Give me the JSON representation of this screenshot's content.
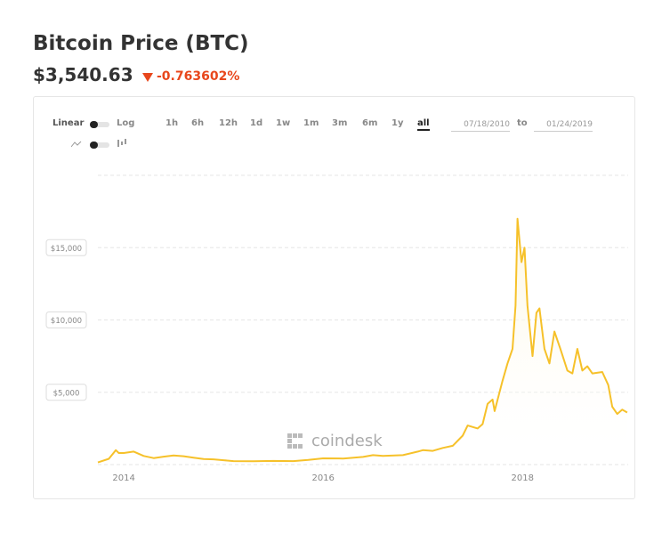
{
  "header": {
    "title": "Bitcoin Price (BTC)",
    "price": "$3,540.63",
    "change": "-0.763602%"
  },
  "controls": {
    "scales": [
      "Linear",
      "Log"
    ],
    "ranges": [
      "1h",
      "6h",
      "12h",
      "1d",
      "1w",
      "1m",
      "3m",
      "6m",
      "1y",
      "all"
    ],
    "active_range": "all",
    "date_from": "07/18/2010",
    "date_separator": "to",
    "date_to": "01/24/2019"
  },
  "chart_data": {
    "type": "area",
    "watermark": "coindesk",
    "x": [
      2013.74,
      2013.85,
      2013.92,
      2013.95,
      2014.0,
      2014.1,
      2014.2,
      2014.3,
      2014.4,
      2014.5,
      2014.6,
      2014.7,
      2014.8,
      2014.9,
      2015.0,
      2015.1,
      2015.3,
      2015.5,
      2015.7,
      2015.85,
      2016.0,
      2016.2,
      2016.4,
      2016.5,
      2016.6,
      2016.8,
      2016.95,
      2017.0,
      2017.1,
      2017.2,
      2017.3,
      2017.4,
      2017.45,
      2017.55,
      2017.6,
      2017.65,
      2017.7,
      2017.72,
      2017.8,
      2017.85,
      2017.9,
      2017.93,
      2017.95,
      2017.99,
      2018.02,
      2018.05,
      2018.1,
      2018.14,
      2018.17,
      2018.22,
      2018.27,
      2018.32,
      2018.38,
      2018.45,
      2018.5,
      2018.55,
      2018.6,
      2018.65,
      2018.7,
      2018.8,
      2018.86,
      2018.9,
      2018.95,
      2019.0,
      2019.05
    ],
    "series": [
      {
        "name": "BTC",
        "color": "#f6c12a",
        "fill": "#fdf6e0",
        "values": [
          150,
          400,
          1000,
          800,
          800,
          900,
          600,
          450,
          550,
          630,
          580,
          480,
          380,
          360,
          300,
          240,
          230,
          250,
          240,
          320,
          430,
          420,
          530,
          650,
          600,
          650,
          900,
          1000,
          950,
          1150,
          1300,
          2000,
          2700,
          2500,
          2800,
          4200,
          4500,
          3700,
          5800,
          7000,
          8000,
          11000,
          17000,
          14000,
          15000,
          11000,
          7500,
          10500,
          10800,
          8000,
          7000,
          9200,
          8000,
          6500,
          6300,
          8000,
          6500,
          6800,
          6300,
          6400,
          5500,
          4000,
          3500,
          3800,
          3600
        ]
      }
    ],
    "xlim": [
      2013.74,
      2019.06
    ],
    "xticks": [
      2014,
      2016,
      2018
    ],
    "ylim": [
      0,
      20000
    ],
    "yticks": [
      {
        "value": 5000,
        "label": "$5,000"
      },
      {
        "value": 10000,
        "label": "$10,000"
      },
      {
        "value": 15000,
        "label": "$15,000"
      }
    ],
    "grid": true
  }
}
